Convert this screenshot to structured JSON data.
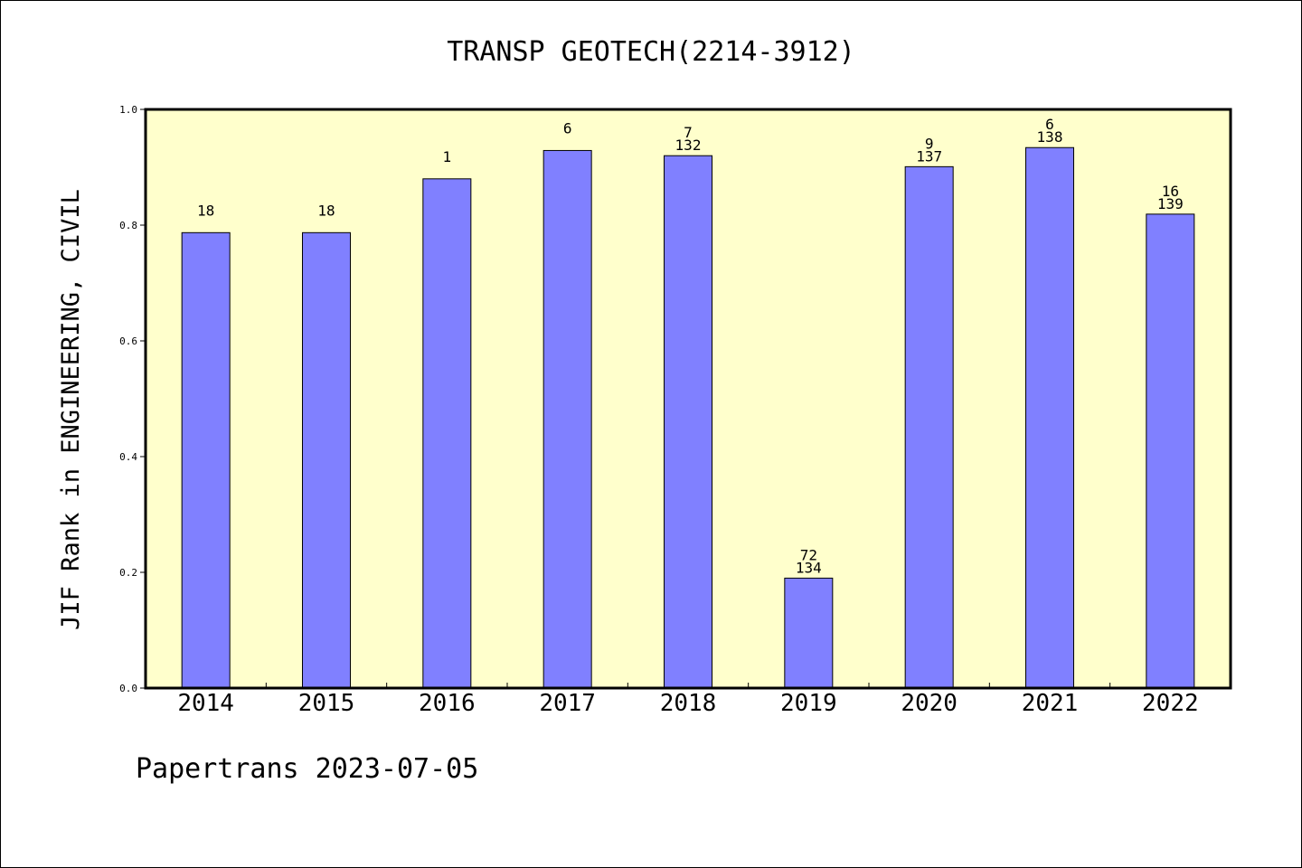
{
  "chart_data": {
    "type": "bar",
    "title": "TRANSP GEOTECH(2214-3912)",
    "ylabel": "JIF Rank in ENGINEERING, CIVIL",
    "xlabel": "",
    "ylim": [
      0,
      1.0
    ],
    "yticks": [
      "0.0",
      "0.2",
      "0.4",
      "0.6",
      "0.8",
      "1.0"
    ],
    "categories": [
      "2014",
      "2015",
      "2016",
      "2017",
      "2018",
      "2019",
      "2020",
      "2021",
      "2022"
    ],
    "values": [
      0.787,
      0.787,
      0.88,
      0.929,
      0.92,
      0.19,
      0.901,
      0.934,
      0.819
    ],
    "rank_labels": [
      "18",
      "18",
      "1",
      "6",
      "7",
      "72",
      "9",
      "6",
      "16"
    ],
    "total_labels": [
      "",
      "",
      "",
      "",
      "132",
      "134",
      "137",
      "138",
      "139"
    ],
    "grid": false,
    "colors": {
      "bar": "#8080ff",
      "plot_bg": "#ffffcc",
      "axis": "#000000"
    }
  },
  "footer": "Papertrans 2023-07-05"
}
